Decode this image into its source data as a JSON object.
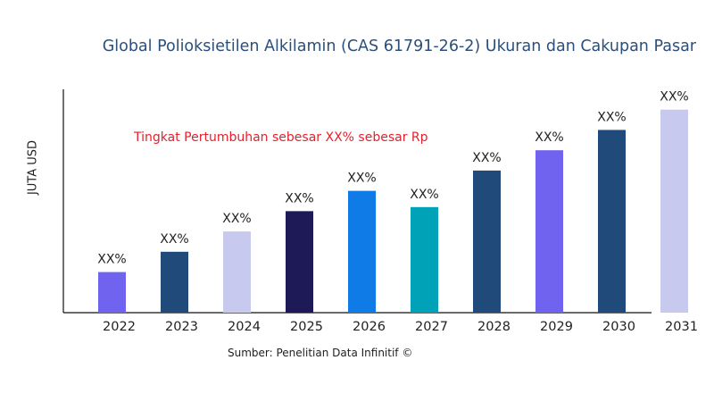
{
  "chart_data": {
    "type": "bar",
    "title": "Global Polioksietilen Alkilamin (CAS 61791-26-2) Ukuran dan Cakupan Pasar",
    "xlabel": "",
    "ylabel": "JUTA USD",
    "categories": [
      "2022",
      "2023",
      "2024",
      "2025",
      "2026",
      "2027",
      "2028",
      "2029",
      "2030",
      "2031"
    ],
    "values": [
      1.0,
      1.5,
      2.0,
      2.5,
      3.0,
      2.6,
      3.5,
      4.0,
      4.5,
      5.0
    ],
    "data_labels": [
      "XX%",
      "XX%",
      "XX%",
      "XX%",
      "XX%",
      "XX%",
      "XX%",
      "XX%",
      "XX%",
      "XX%"
    ],
    "colors": [
      "#6f63f0",
      "#1f4a7a",
      "#c8c9ef",
      "#1d1a57",
      "#0e7be6",
      "#00a2b8",
      "#1f4a7a",
      "#6f63f0",
      "#1f4a7a",
      "#c8c9ef"
    ],
    "ylim": [
      0,
      5.5
    ],
    "grid": false,
    "annotation": "Tingkat Pertumbuhan sebesar XX% sebesar Rp",
    "source": "Sumber: Penelitian Data Infinitif ©"
  }
}
